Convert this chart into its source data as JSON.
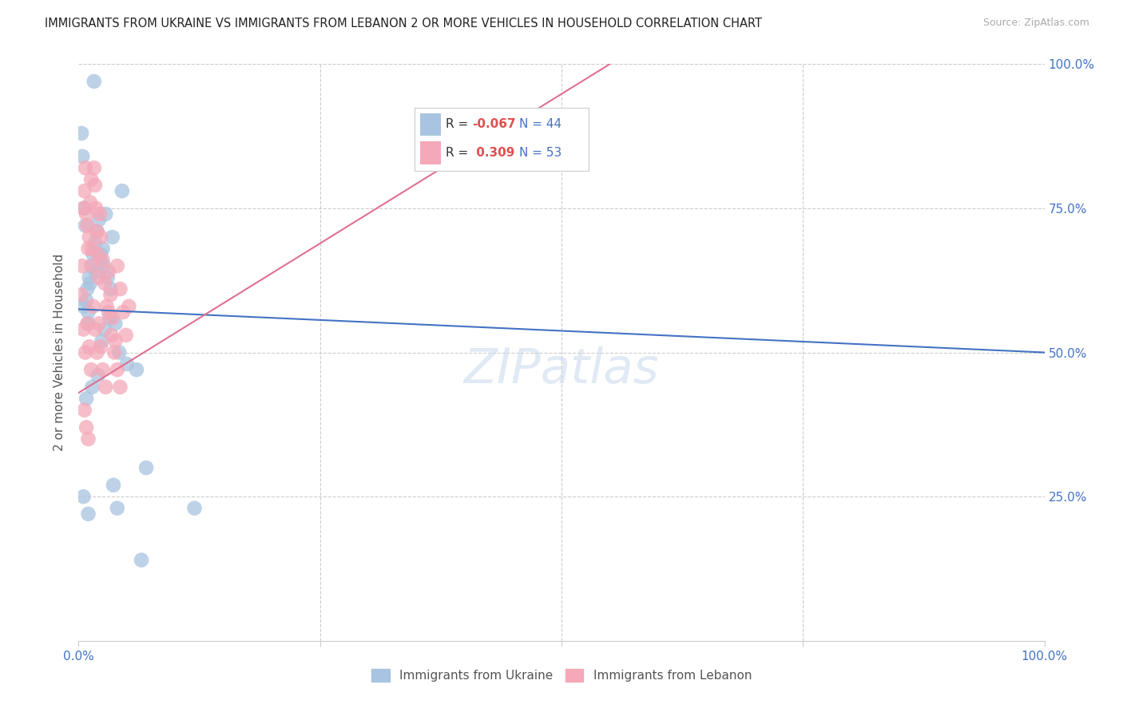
{
  "title": "IMMIGRANTS FROM UKRAINE VS IMMIGRANTS FROM LEBANON 2 OR MORE VEHICLES IN HOUSEHOLD CORRELATION CHART",
  "source": "Source: ZipAtlas.com",
  "ylabel": "2 or more Vehicles in Household",
  "ukraine_color": "#a8c4e0",
  "lebanon_color": "#f4a8b8",
  "ukraine_line_color": "#4472c4",
  "lebanon_line_color": "#e07090",
  "watermark": "ZIPatlas",
  "ukraine_R": -0.067,
  "ukraine_N": 44,
  "lebanon_R": 0.309,
  "lebanon_N": 53,
  "ukraine_x": [
    1.6,
    0.5,
    1.0,
    2.5,
    1.8,
    2.2,
    3.5,
    2.8,
    4.5,
    1.2,
    1.0,
    0.8,
    0.9,
    1.1,
    1.3,
    1.5,
    1.7,
    1.9,
    2.1,
    2.3,
    2.6,
    3.0,
    3.3,
    3.8,
    4.2,
    5.0,
    6.0,
    7.0,
    0.3,
    0.4,
    0.6,
    0.7,
    0.8,
    1.4,
    2.0,
    2.4,
    2.7,
    3.2,
    3.6,
    4.0,
    0.5,
    1.0,
    6.5,
    12.0
  ],
  "ukraine_y": [
    97.0,
    58.0,
    55.0,
    68.0,
    64.0,
    66.0,
    70.0,
    74.0,
    78.0,
    62.0,
    57.0,
    59.0,
    61.0,
    63.0,
    65.0,
    67.0,
    69.0,
    71.0,
    73.0,
    67.0,
    65.0,
    63.0,
    61.0,
    55.0,
    50.0,
    48.0,
    47.0,
    30.0,
    88.0,
    84.0,
    75.0,
    72.0,
    42.0,
    44.0,
    46.0,
    52.0,
    54.0,
    56.0,
    27.0,
    23.0,
    25.0,
    22.0,
    14.0,
    23.0
  ],
  "lebanon_x": [
    0.3,
    0.4,
    0.5,
    0.6,
    0.7,
    0.8,
    0.9,
    1.0,
    1.1,
    1.2,
    1.3,
    1.4,
    1.5,
    1.6,
    1.7,
    1.8,
    1.9,
    2.0,
    2.1,
    2.2,
    2.3,
    2.5,
    2.7,
    2.9,
    3.1,
    3.3,
    3.5,
    3.8,
    4.0,
    4.3,
    4.6,
    4.9,
    5.2,
    0.5,
    0.7,
    0.9,
    1.1,
    1.3,
    1.5,
    1.7,
    1.9,
    2.1,
    2.3,
    2.5,
    2.8,
    3.1,
    3.4,
    3.7,
    4.0,
    4.3,
    0.6,
    0.8,
    1.0
  ],
  "lebanon_y": [
    60.0,
    65.0,
    75.0,
    78.0,
    82.0,
    74.0,
    72.0,
    68.0,
    70.0,
    76.0,
    80.0,
    68.0,
    65.0,
    82.0,
    79.0,
    75.0,
    71.0,
    67.0,
    63.0,
    74.0,
    70.0,
    66.0,
    62.0,
    58.0,
    64.0,
    60.0,
    56.0,
    52.0,
    65.0,
    61.0,
    57.0,
    53.0,
    58.0,
    54.0,
    50.0,
    55.0,
    51.0,
    47.0,
    58.0,
    54.0,
    50.0,
    55.0,
    51.0,
    47.0,
    44.0,
    57.0,
    53.0,
    50.0,
    47.0,
    44.0,
    40.0,
    37.0,
    35.0
  ],
  "xlim": [
    0,
    100
  ],
  "ylim": [
    0,
    100
  ],
  "grid_color": "#cccccc",
  "background_color": "#ffffff",
  "ukraine_line_x": [
    0,
    100
  ],
  "ukraine_line_y": [
    57.5,
    50.0
  ],
  "lebanon_line_x": [
    0,
    55
  ],
  "lebanon_line_y": [
    43.0,
    100.0
  ]
}
